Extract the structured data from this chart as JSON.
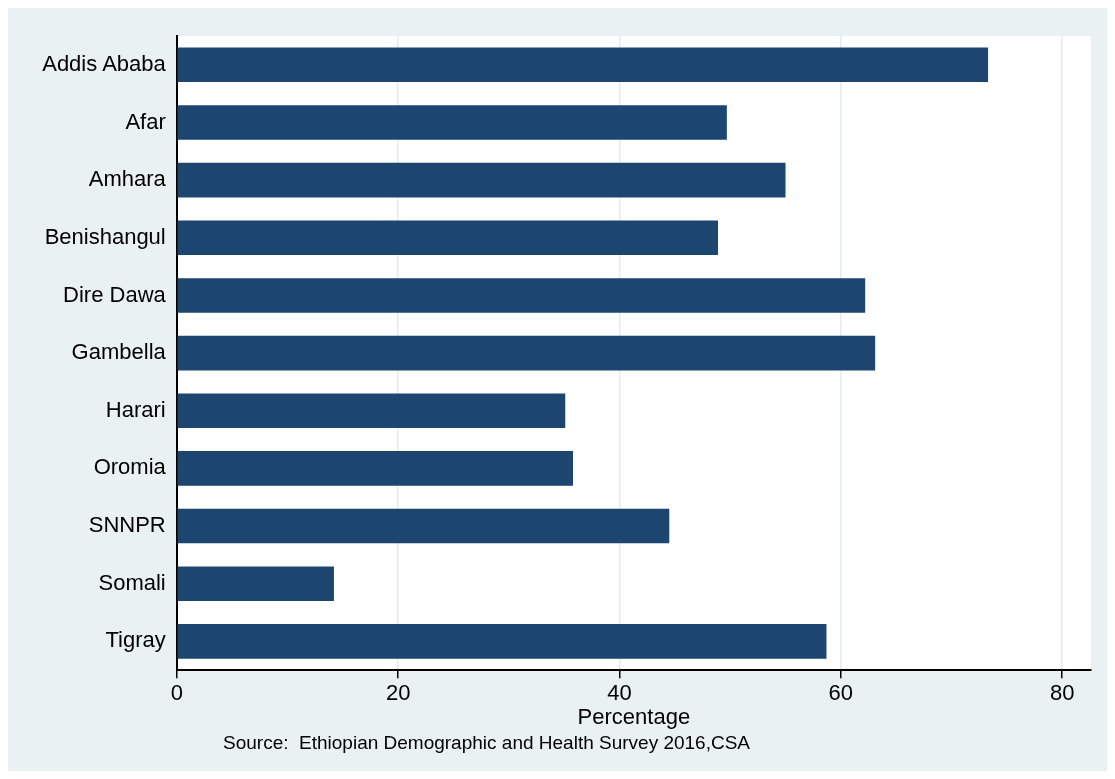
{
  "chart_data": {
    "type": "bar",
    "orientation": "horizontal",
    "categories": [
      "Addis Ababa",
      "Afar",
      "Amhara",
      "Benishangul",
      "Dire Dawa",
      "Gambella",
      "Harari",
      "Oromia",
      "SNNPR",
      "Somali",
      "Tigray"
    ],
    "values": [
      73.3,
      49.7,
      55.0,
      48.9,
      62.2,
      63.1,
      35.1,
      35.8,
      44.5,
      14.2,
      58.7
    ],
    "color": "#1c4670",
    "xlabel": "Percentage",
    "xlim": [
      0,
      82.6
    ],
    "xticks": [
      0,
      20,
      40,
      60,
      80
    ],
    "grid": "x",
    "legend": false,
    "annotations": [
      "Source:  Ethiopian Demographic and Health Survey 2016,CSA"
    ]
  }
}
